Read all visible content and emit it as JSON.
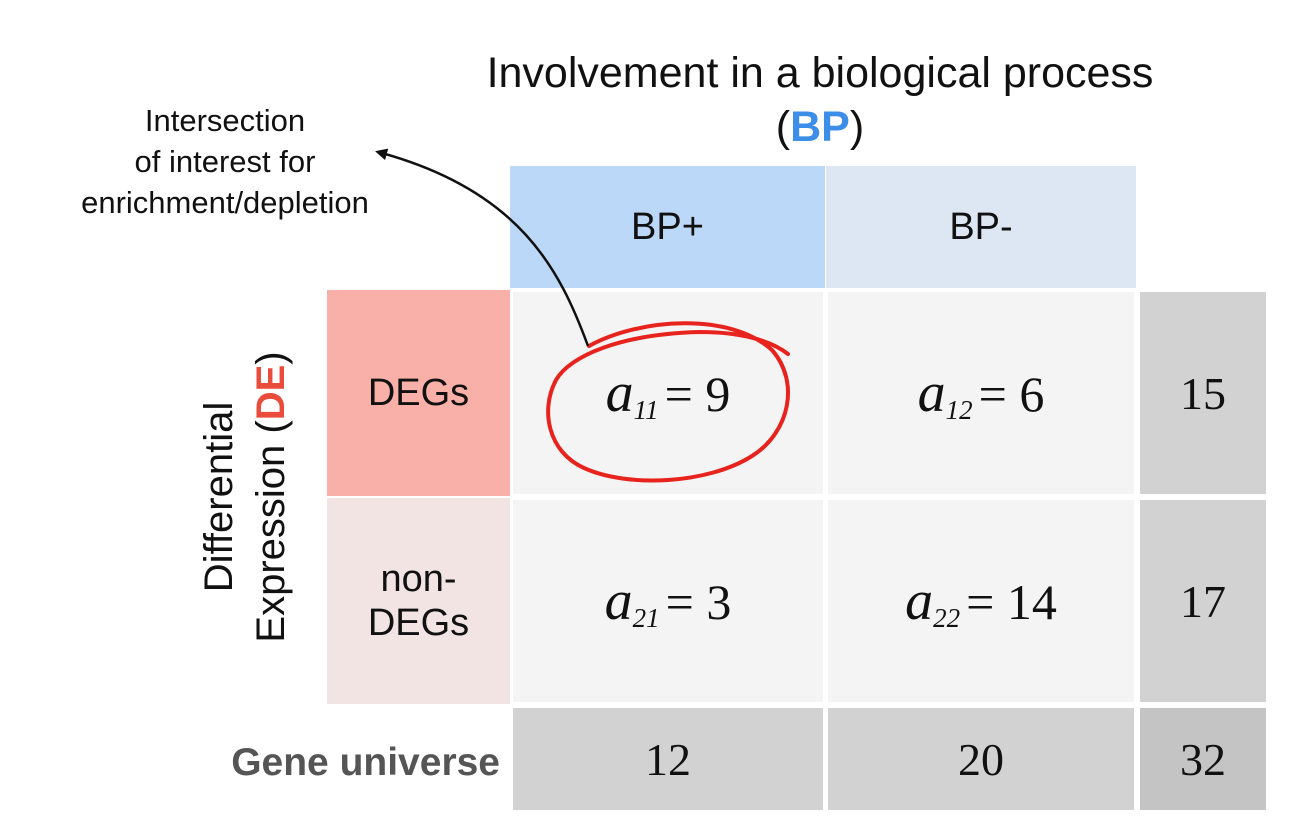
{
  "column_variable": {
    "title_prefix": "Involvement in a biological process (",
    "abbrev": "BP",
    "title_suffix": ")",
    "categories": [
      "BP+",
      "BP-"
    ]
  },
  "row_variable": {
    "title_line1": "Differential",
    "title_line2_prefix": "Expression (",
    "abbrev": "DE",
    "title_suffix": ")",
    "categories": [
      "DEGs",
      "non-",
      "DEGs"
    ]
  },
  "cells": {
    "a11": {
      "symbol": "a",
      "subscript": "11",
      "eq": "= ",
      "value": "9"
    },
    "a12": {
      "symbol": "a",
      "subscript": "12",
      "eq": "= ",
      "value": "6"
    },
    "a21": {
      "symbol": "a",
      "subscript": "21",
      "eq": "= ",
      "value": "3"
    },
    "a22": {
      "symbol": "a",
      "subscript": "22",
      "eq": "= ",
      "value": "14"
    }
  },
  "margins": {
    "row_totals": [
      "15",
      "17"
    ],
    "col_totals": [
      "12",
      "20"
    ],
    "grand_total": "32",
    "label": "Gene universe"
  },
  "annotation": {
    "line1": "Intersection",
    "line2": "of interest for",
    "line3": "enrichment/depletion"
  },
  "colors": {
    "bp_header": "#bcd8f8",
    "bp_minus_header": "#dde7f3",
    "degs_header": "#f8b0a8",
    "non_degs_header": "#f1e4e3",
    "bp_abbrev": "#3d8ee8",
    "de_abbrev": "#ea4c3c",
    "highlight_circle": "#e8231d"
  }
}
